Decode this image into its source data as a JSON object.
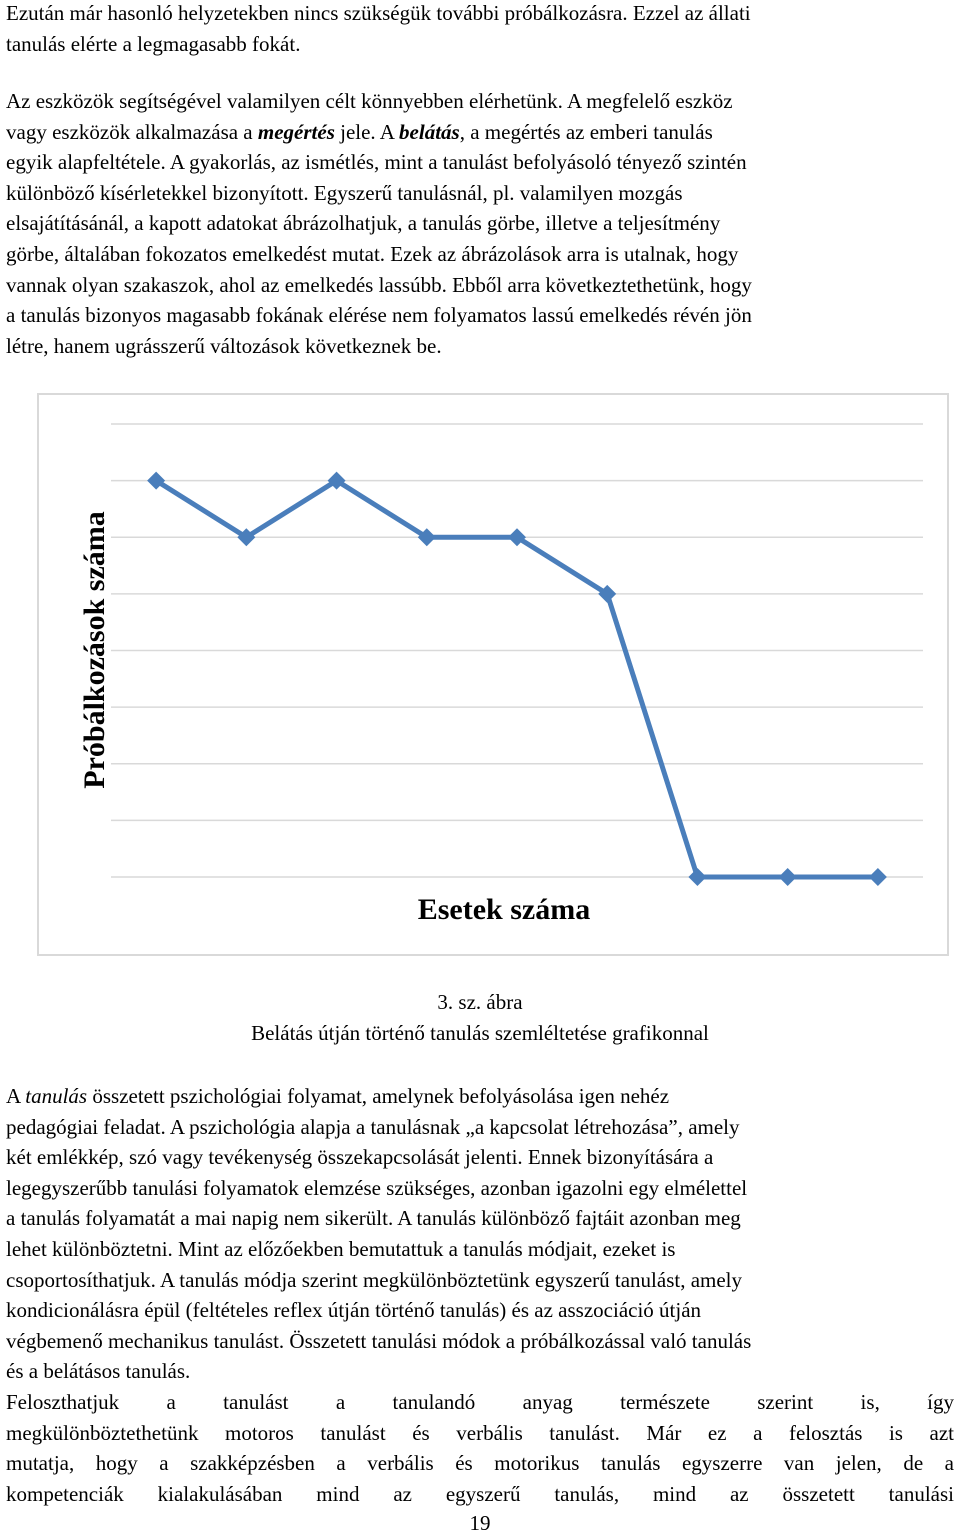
{
  "para1": {
    "lines": [
      "Ezután már hasonló helyzetekben nincs szükségük további próbálkozásra. Ezzel az állati",
      "tanulás elérte a legmagasabb fokát."
    ]
  },
  "para2": {
    "l1": "Az eszközök segítségével valamilyen célt könnyebben elérhetünk. A megfelelő eszköz",
    "l2_a": "vagy eszközök alkalmazása a ",
    "l2_b": "megértés",
    "l2_c": " jele. A ",
    "l2_d": "belátás",
    "l2_e": ", a megértés az emberi tanulás",
    "l3": "egyik alapfeltétele. A gyakorlás, az ismétlés, mint a tanulást befolyásoló tényező szintén",
    "l4": "különböző kísérletekkel bizonyított. Egyszerű tanulásnál, pl. valamilyen mozgás",
    "l5": "elsajátításánál, a kapott adatokat ábrázolhatjuk, a tanulás görbe, illetve a teljesítmény",
    "l6": "görbe, általában fokozatos emelkedést mutat. Ezek az ábrázolások arra is utalnak, hogy",
    "l7": "vannak olyan szakaszok, ahol az emelkedés lassúbb. Ebből arra következtethetünk, hogy",
    "l8": "a tanulás bizonyos magasabb fokának elérése nem folyamatos lassú emelkedés révén jön",
    "l9": "létre, hanem ugrásszerű változások következnek be."
  },
  "chart_data": {
    "type": "line",
    "xlabel": "Esetek száma",
    "ylabel": "Próbálkozások száma",
    "x": [
      1,
      2,
      3,
      4,
      5,
      6,
      7,
      8,
      9
    ],
    "series": [
      {
        "values": [
          7,
          6,
          7,
          6,
          6,
          5,
          0,
          0,
          0
        ]
      }
    ],
    "ylim": [
      0,
      8
    ],
    "grid": true,
    "line_color": "#4a7ebb"
  },
  "caption": {
    "number": "3. sz. ábra",
    "title": "Belátás útján történő tanulás szemléltetése grafikonnal"
  },
  "para3": {
    "l1_a": "A ",
    "l1_b": "tanulás",
    "l1_c": " összetett pszichológiai folyamat, amelynek befolyásolása igen nehéz",
    "l2": "pedagógiai feladat. A pszichológia alapja a tanulásnak „a kapcsolat létrehozása”, amely",
    "l3": "két emlékkép, szó vagy tevékenység összekapcsolását jelenti. Ennek bizonyítására a",
    "l4": "legegyszerűbb tanulási folyamatok elemzése szükséges, azonban igazolni egy elmélettel",
    "l5": "a tanulás folyamatát a mai napig nem sikerült. A tanulás különböző fajtáit azonban meg",
    "l6": "lehet különböztetni. Mint az előzőekben bemutattuk a tanulás módjait, ezeket is",
    "l7": "csoportosíthatjuk. A tanulás módja szerint megkülönböztetünk egyszerű tanulást, amely",
    "l8": "kondicionálásra épül (feltételes reflex útján történő tanulás) és az asszociáció útján",
    "l9": "végbemenő mechanikus tanulást. Összetett tanulási módok a próbálkozással való tanulás",
    "l10": "és a belátásos tanulás."
  },
  "para4": {
    "lines": [
      "Feloszthatjuk a tanulást a tanulandó anyag természete szerint is, így",
      "megkülönböztethetünk motoros tanulást és verbális tanulást. Már ez a felosztás is azt",
      "mutatja, hogy a szakképzésben a verbális és motorikus tanulás egyszerre van jelen, de a",
      "kompetenciák kialakulásában mind az egyszerű tanulás, mind az összetett tanulási"
    ]
  },
  "page_number": "19"
}
